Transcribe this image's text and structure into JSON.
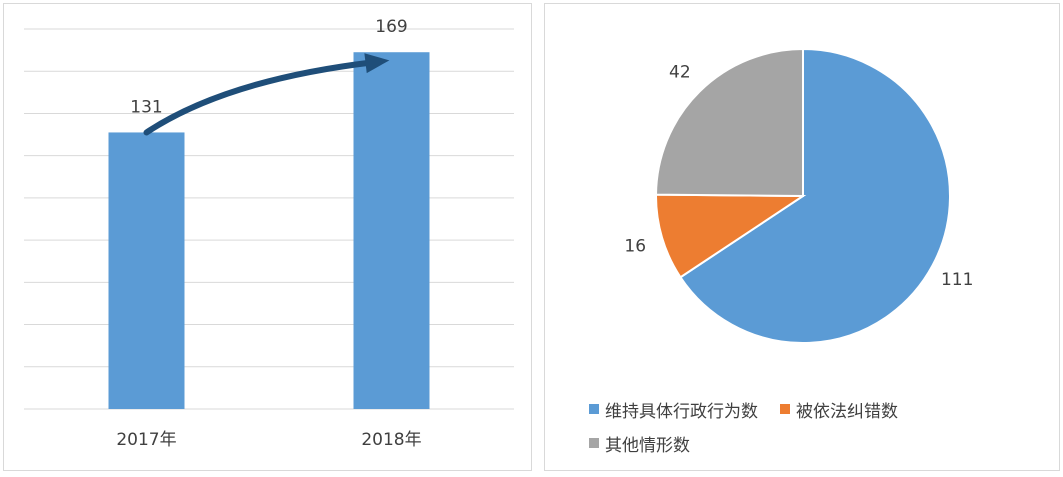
{
  "chart_data": [
    {
      "type": "bar",
      "categories": [
        "2017年",
        "2018年"
      ],
      "values": [
        131,
        169
      ],
      "data_labels": [
        "131",
        "169"
      ],
      "ylim": [
        0,
        180
      ],
      "grid": true,
      "color": "#5B9BD5",
      "arrow_color": "#1F4E79"
    },
    {
      "type": "pie",
      "labels": [
        "维持具体行政行为数",
        "被依法纠错数",
        "其他情形数"
      ],
      "values": [
        111,
        16,
        42
      ],
      "data_labels": [
        "111",
        "16",
        "42"
      ],
      "colors": [
        "#5B9BD5",
        "#ED7D31",
        "#A5A5A5"
      ],
      "legend_position": "bottom"
    }
  ]
}
